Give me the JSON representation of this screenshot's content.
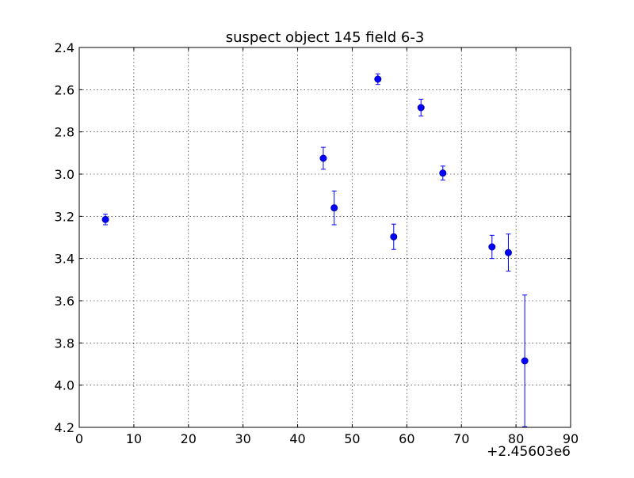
{
  "chart_data": {
    "type": "scatter",
    "title": "suspect object 145 field 6-3",
    "xlabel": "",
    "ylabel": "",
    "x_offset_label": "+2.45603e6",
    "xlim": [
      0,
      90
    ],
    "ylim": [
      4.2,
      2.4
    ],
    "y_inverted": true,
    "grid": true,
    "legend": "none",
    "x_ticks": [
      "0",
      "10",
      "20",
      "30",
      "40",
      "50",
      "60",
      "70",
      "80",
      "90"
    ],
    "y_ticks": [
      "2.4",
      "2.6",
      "2.8",
      "3.0",
      "3.2",
      "3.4",
      "3.6",
      "3.8",
      "4.0",
      "4.2"
    ],
    "series": [
      {
        "color": "#0000ff",
        "marker": "circle",
        "points": [
          {
            "x": 4.8,
            "y": 3.215,
            "err": 0.025
          },
          {
            "x": 44.7,
            "y": 2.925,
            "err": 0.052
          },
          {
            "x": 46.7,
            "y": 3.16,
            "err": 0.08
          },
          {
            "x": 54.7,
            "y": 2.55,
            "err": 0.025
          },
          {
            "x": 57.6,
            "y": 3.297,
            "err": 0.06
          },
          {
            "x": 62.6,
            "y": 2.685,
            "err": 0.04
          },
          {
            "x": 66.6,
            "y": 2.995,
            "err": 0.033
          },
          {
            "x": 75.6,
            "y": 3.345,
            "err": 0.055
          },
          {
            "x": 78.6,
            "y": 3.372,
            "err": 0.088
          },
          {
            "x": 81.6,
            "y": 3.885,
            "err": 0.312
          }
        ]
      }
    ]
  }
}
